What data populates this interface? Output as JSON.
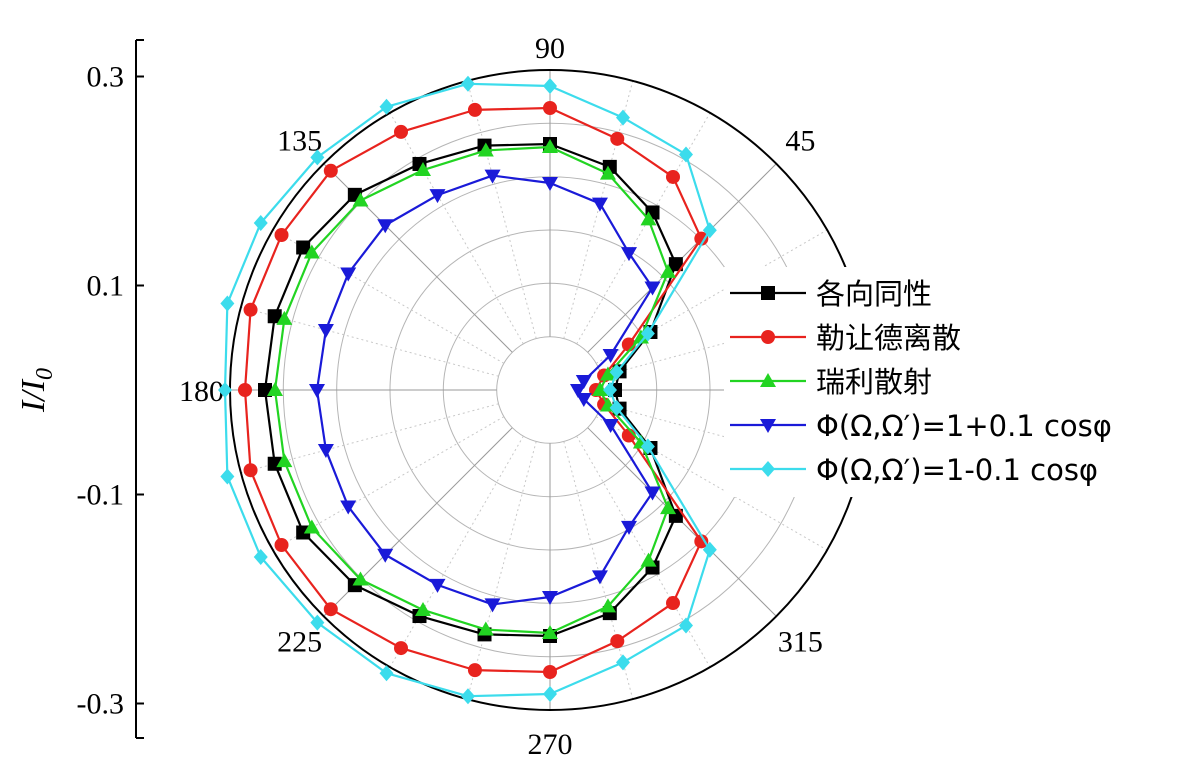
{
  "chart_data": {
    "type": "polar-line",
    "ylabel": "I/I",
    "ylabel_sub": "0",
    "angle_ticks": [
      {
        "deg": 0,
        "label": ""
      },
      {
        "deg": 45,
        "label": "45"
      },
      {
        "deg": 90,
        "label": "90"
      },
      {
        "deg": 135,
        "label": "135"
      },
      {
        "deg": 180,
        "label": "180"
      },
      {
        "deg": 225,
        "label": "225"
      },
      {
        "deg": 270,
        "label": "270"
      },
      {
        "deg": 315,
        "label": "315"
      }
    ],
    "y_ticks": [
      {
        "value": 0.3,
        "label": "0.3"
      },
      {
        "value": 0.1,
        "label": "0.1"
      },
      {
        "value": -0.1,
        "label": "-0.1"
      },
      {
        "value": -0.3,
        "label": "-0.3"
      }
    ],
    "r_max": 0.32,
    "grid": true,
    "legend_position": "right",
    "angles": [
      0,
      15,
      30,
      45,
      60,
      75,
      90,
      105,
      120,
      135,
      150,
      165,
      180,
      195,
      210,
      225,
      240,
      255,
      270,
      285,
      300,
      315,
      330,
      345
    ],
    "series": [
      {
        "name": "各向同性",
        "color": "#000000",
        "marker": "square",
        "values": [
          0.065,
          0.072,
          0.116,
          0.178,
          0.205,
          0.231,
          0.246,
          0.253,
          0.261,
          0.276,
          0.285,
          0.285,
          0.285,
          0.285,
          0.285,
          0.276,
          0.261,
          0.253,
          0.246,
          0.231,
          0.205,
          0.178,
          0.116,
          0.072
        ]
      },
      {
        "name": "勒让德离散",
        "color": "#e8231e",
        "marker": "circle",
        "values": [
          0.046,
          0.056,
          0.091,
          0.214,
          0.246,
          0.26,
          0.282,
          0.29,
          0.298,
          0.31,
          0.31,
          0.31,
          0.305,
          0.31,
          0.31,
          0.31,
          0.298,
          0.29,
          0.282,
          0.26,
          0.246,
          0.214,
          0.091,
          0.056
        ]
      },
      {
        "name": "瑞利散射",
        "color": "#22d422",
        "marker": "triangle-up",
        "values": [
          0.05,
          0.06,
          0.105,
          0.167,
          0.197,
          0.224,
          0.243,
          0.248,
          0.254,
          0.268,
          0.275,
          0.275,
          0.275,
          0.275,
          0.275,
          0.268,
          0.254,
          0.248,
          0.243,
          0.224,
          0.197,
          0.167,
          0.105,
          0.06
        ]
      },
      {
        "name": "Φ(Ω,Ω′)=1+0.1 cosφ",
        "color": "#1a1ad8",
        "marker": "triangle-down",
        "values": [
          0.028,
          0.035,
          0.07,
          0.145,
          0.158,
          0.193,
          0.207,
          0.222,
          0.225,
          0.233,
          0.233,
          0.232,
          0.233,
          0.232,
          0.233,
          0.233,
          0.225,
          0.222,
          0.207,
          0.193,
          0.158,
          0.145,
          0.07,
          0.035
        ]
      },
      {
        "name": "Φ(Ω,Ω′)=1-0.1 cosφ",
        "color": "#3cdcec",
        "marker": "diamond",
        "values": [
          0.06,
          0.069,
          0.113,
          0.226,
          0.272,
          0.282,
          0.304,
          0.317,
          0.327,
          0.329,
          0.334,
          0.334,
          0.325,
          0.334,
          0.334,
          0.329,
          0.327,
          0.317,
          0.304,
          0.282,
          0.272,
          0.226,
          0.113,
          0.069
        ]
      }
    ]
  }
}
